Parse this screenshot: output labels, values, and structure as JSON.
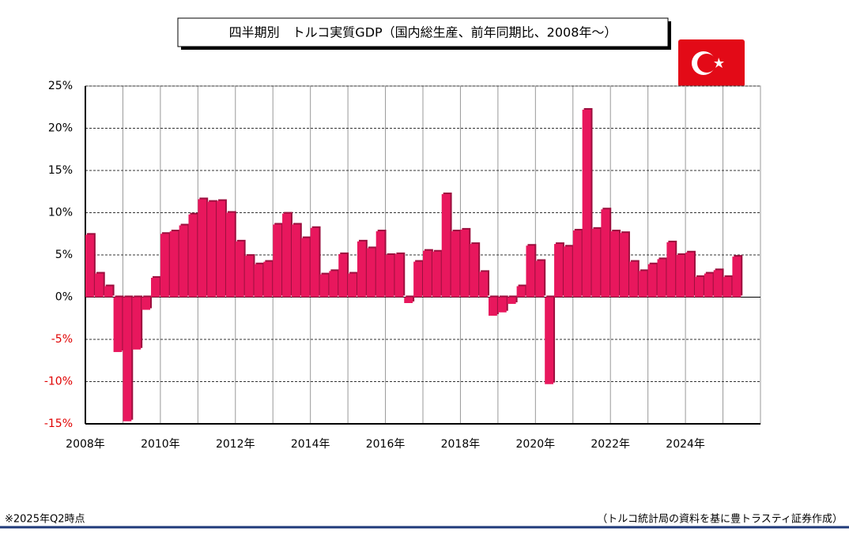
{
  "chart_data": {
    "type": "bar",
    "title": "四半期別　トルコ実質GDP（国内総生産、前年同期比、2008年～）",
    "categories": [
      "2008年",
      null,
      null,
      null,
      null,
      null,
      null,
      null,
      "2010年",
      null,
      null,
      null,
      null,
      null,
      null,
      null,
      "2012年",
      null,
      null,
      null,
      null,
      null,
      null,
      null,
      "2014年",
      null,
      null,
      null,
      null,
      null,
      null,
      null,
      "2016年",
      null,
      null,
      null,
      null,
      null,
      null,
      null,
      "2018年",
      null,
      null,
      null,
      null,
      null,
      null,
      null,
      "2020年",
      null,
      null,
      null,
      null,
      null,
      null,
      null,
      "2022年",
      null,
      null,
      null,
      null,
      null,
      null,
      null,
      "2024年",
      null,
      null,
      null,
      null,
      null
    ],
    "values": [
      7.4,
      2.8,
      1.3,
      -6.5,
      -14.7,
      -6.2,
      -1.5,
      2.3,
      7.5,
      7.8,
      8.5,
      9.8,
      11.6,
      11.3,
      11.4,
      10.0,
      6.6,
      4.9,
      3.9,
      4.2,
      8.6,
      9.9,
      8.6,
      7.0,
      8.2,
      2.7,
      3.1,
      5.1,
      2.8,
      6.6,
      5.8,
      7.8,
      5.0,
      5.1,
      -0.7,
      4.2,
      5.5,
      5.4,
      12.2,
      7.8,
      8.0,
      6.3,
      3.0,
      -2.2,
      -1.8,
      -0.8,
      1.3,
      6.1,
      4.3,
      -10.3,
      6.3,
      6.0,
      7.9,
      22.2,
      8.1,
      10.4,
      7.8,
      7.6,
      4.2,
      3.1,
      3.9,
      4.5,
      6.5,
      5.0,
      5.3,
      2.4,
      2.8,
      3.2,
      2.4,
      4.8
    ],
    "color": "#e8175d",
    "ylim": [
      -15,
      25
    ],
    "yticks": [
      {
        "value": -15,
        "label": "-15%"
      },
      {
        "value": -10,
        "label": "-10%"
      },
      {
        "value": -5,
        "label": "-5%"
      },
      {
        "value": 0,
        "label": "0%"
      },
      {
        "value": 5,
        "label": "5%"
      },
      {
        "value": 10,
        "label": "10%"
      },
      {
        "value": 15,
        "label": "15%"
      },
      {
        "value": 20,
        "label": "20%"
      },
      {
        "value": 25,
        "label": "25%"
      }
    ],
    "grid": true,
    "note": "※2025年Q2時点",
    "source": "（トルコ統計局の資料を基に豊トラスティ証券作成）"
  }
}
